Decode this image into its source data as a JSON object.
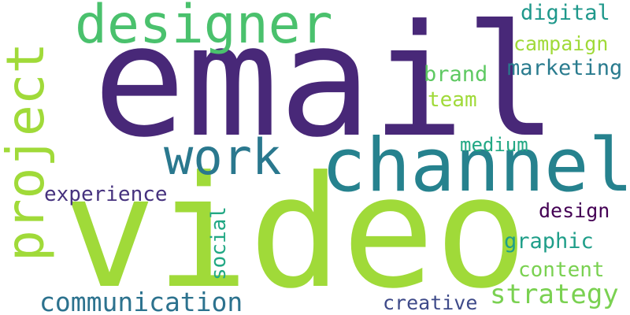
{
  "words": {
    "email": {
      "text": "email",
      "color": "#482878"
    },
    "video": {
      "text": "video",
      "color": "#a0da39"
    },
    "channel": {
      "text": "channel",
      "color": "#26828e"
    },
    "designer": {
      "text": "designer",
      "color": "#4ac16d"
    },
    "project": {
      "text": "project",
      "color": "#a0da39"
    },
    "work": {
      "text": "work",
      "color": "#2a788e"
    },
    "communication": {
      "text": "communication",
      "color": "#2c728e"
    },
    "strategy": {
      "text": "strategy",
      "color": "#7ad151"
    },
    "experience": {
      "text": "experience",
      "color": "#46327e"
    },
    "digital": {
      "text": "digital",
      "color": "#1f988b"
    },
    "campaign": {
      "text": "campaign",
      "color": "#a0da39"
    },
    "marketing": {
      "text": "marketing",
      "color": "#297b8e"
    },
    "brand": {
      "text": "brand",
      "color": "#5ec962"
    },
    "team": {
      "text": "team",
      "color": "#a0da39"
    },
    "medium": {
      "text": "medium",
      "color": "#22a884"
    },
    "design": {
      "text": "design",
      "color": "#440154"
    },
    "graphic": {
      "text": "graphic",
      "color": "#1f9e89"
    },
    "content": {
      "text": "content",
      "color": "#7ad151"
    },
    "social": {
      "text": "social",
      "color": "#22a884"
    },
    "creative": {
      "text": "creative",
      "color": "#3e4a89"
    }
  }
}
